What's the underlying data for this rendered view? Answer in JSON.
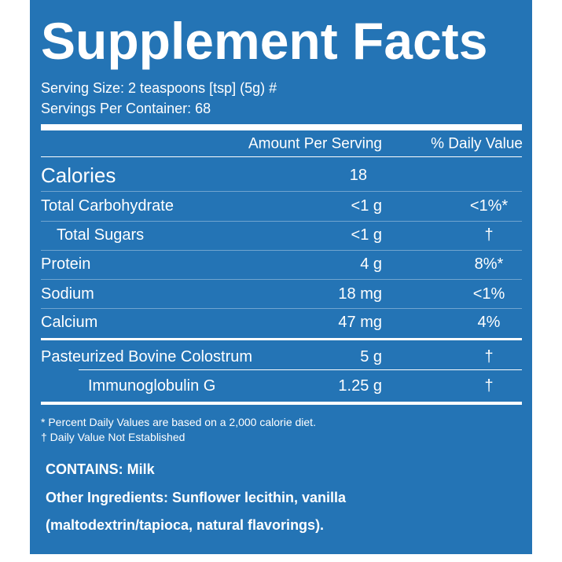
{
  "header": {
    "title": "Supplement Facts",
    "serving_size": "Serving Size: 2 teaspoons [tsp] (5g) #",
    "servings_per_container": "Servings Per Container: 68"
  },
  "table": {
    "columns": [
      "Amount Per Serving",
      "% Daily Value"
    ],
    "rows": [
      [
        "Calories",
        "18",
        ""
      ],
      [
        "Total Carbohydrate",
        "<1 g",
        "<1%*"
      ],
      [
        "Total Sugars",
        "<1 g",
        "†"
      ],
      [
        "Protein",
        "4 g",
        "8%*"
      ],
      [
        "Sodium",
        "18 mg",
        "<1%"
      ],
      [
        "Calcium",
        "47 mg",
        "4%"
      ],
      [
        "Pasteurized Bovine Colostrum",
        "5 g",
        "†"
      ],
      [
        "Immunoglobulin G",
        "1.25 g",
        "†"
      ]
    ]
  },
  "footnotes": [
    "* Percent Daily Values are based on a 2,000 calorie diet.",
    "† Daily Value Not Established"
  ],
  "contains": "CONTAINS: Milk",
  "other_ingredients": [
    "Other Ingredients: Sunflower lecithin, vanilla",
    "(maltodextrin/tapioca, natural flavorings)."
  ]
}
